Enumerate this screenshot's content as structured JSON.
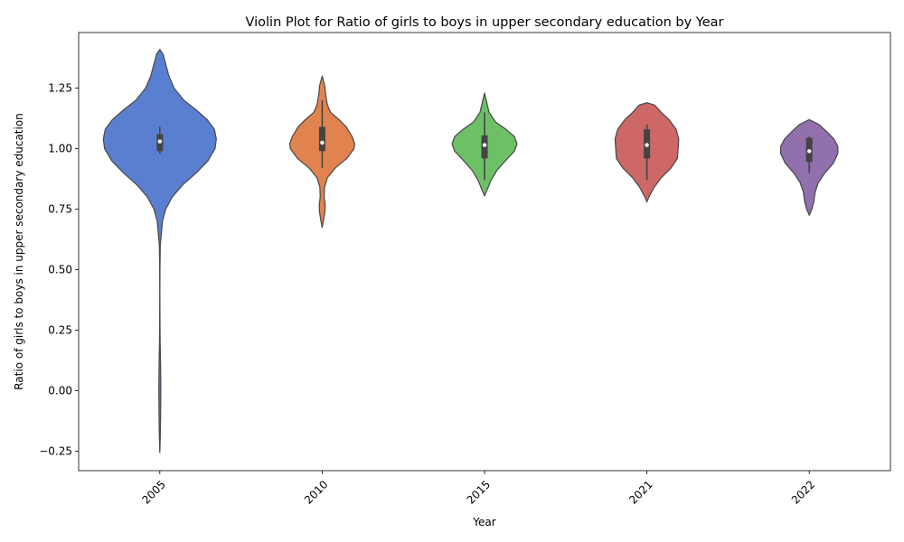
{
  "chart_data": {
    "type": "violin",
    "title": "Violin Plot for Ratio of girls to boys in upper secondary education by Year",
    "xlabel": "Year",
    "ylabel": "Ratio of girls to boys in upper secondary education",
    "ylim": [
      -0.33,
      1.48
    ],
    "yticks": [
      -0.25,
      0.0,
      0.25,
      0.5,
      0.75,
      1.0,
      1.25
    ],
    "ytick_labels": [
      "−0.25",
      "0.00",
      "0.25",
      "0.50",
      "0.75",
      "1.00",
      "1.25"
    ],
    "grid": false,
    "legend": "none",
    "categories": [
      "2005",
      "2010",
      "2015",
      "2021",
      "2022"
    ],
    "series": [
      {
        "category": "2005",
        "color": "#4c72b0",
        "fill": "#5a7fd0",
        "box": {
          "whisker_low": 0.98,
          "q1": 0.99,
          "median": 1.03,
          "q3": 1.06,
          "whisker_high": 1.09
        },
        "density": [
          [
            -0.255,
            0.0
          ],
          [
            -0.2,
            0.006
          ],
          [
            -0.1,
            0.012
          ],
          [
            0.0,
            0.015
          ],
          [
            0.1,
            0.012
          ],
          [
            0.2,
            0.005
          ],
          [
            0.3,
            0.002
          ],
          [
            0.4,
            0.001
          ],
          [
            0.5,
            0.002
          ],
          [
            0.6,
            0.007
          ],
          [
            0.7,
            0.04
          ],
          [
            0.75,
            0.09
          ],
          [
            0.8,
            0.19
          ],
          [
            0.85,
            0.35
          ],
          [
            0.9,
            0.56
          ],
          [
            0.95,
            0.74
          ],
          [
            1.0,
            0.85
          ],
          [
            1.04,
            0.87
          ],
          [
            1.08,
            0.84
          ],
          [
            1.12,
            0.73
          ],
          [
            1.16,
            0.56
          ],
          [
            1.2,
            0.37
          ],
          [
            1.25,
            0.22
          ],
          [
            1.3,
            0.14
          ],
          [
            1.35,
            0.09
          ],
          [
            1.39,
            0.05
          ],
          [
            1.41,
            0.0
          ]
        ]
      },
      {
        "category": "2010",
        "color": "#dd8452",
        "fill": "#e1834f",
        "box": {
          "whisker_low": 0.92,
          "q1": 0.99,
          "median": 1.025,
          "q3": 1.09,
          "whisker_high": 1.2
        },
        "density": [
          [
            0.675,
            0.0
          ],
          [
            0.7,
            0.018
          ],
          [
            0.74,
            0.042
          ],
          [
            0.77,
            0.045
          ],
          [
            0.8,
            0.03
          ],
          [
            0.84,
            0.035
          ],
          [
            0.88,
            0.08
          ],
          [
            0.92,
            0.2
          ],
          [
            0.96,
            0.38
          ],
          [
            1.0,
            0.49
          ],
          [
            1.02,
            0.5
          ],
          [
            1.05,
            0.46
          ],
          [
            1.09,
            0.37
          ],
          [
            1.12,
            0.26
          ],
          [
            1.15,
            0.13
          ],
          [
            1.18,
            0.08
          ],
          [
            1.22,
            0.055
          ],
          [
            1.26,
            0.04
          ],
          [
            1.3,
            0.0
          ]
        ]
      },
      {
        "category": "2015",
        "color": "#55a868",
        "fill": "#6dc066",
        "box": {
          "whisker_low": 0.87,
          "q1": 0.96,
          "median": 1.015,
          "q3": 1.055,
          "whisker_high": 1.15
        },
        "density": [
          [
            0.805,
            0.0
          ],
          [
            0.83,
            0.04
          ],
          [
            0.87,
            0.1
          ],
          [
            0.91,
            0.19
          ],
          [
            0.95,
            0.32
          ],
          [
            0.99,
            0.46
          ],
          [
            1.02,
            0.5
          ],
          [
            1.05,
            0.46
          ],
          [
            1.08,
            0.33
          ],
          [
            1.11,
            0.17
          ],
          [
            1.15,
            0.07
          ],
          [
            1.19,
            0.035
          ],
          [
            1.23,
            0.0
          ]
        ]
      },
      {
        "category": "2021",
        "color": "#c44e52",
        "fill": "#cd6867",
        "box": {
          "whisker_low": 0.87,
          "q1": 0.96,
          "median": 1.015,
          "q3": 1.08,
          "whisker_high": 1.1
        },
        "density": [
          [
            0.78,
            0.0
          ],
          [
            0.8,
            0.03
          ],
          [
            0.84,
            0.11
          ],
          [
            0.88,
            0.22
          ],
          [
            0.92,
            0.37
          ],
          [
            0.96,
            0.47
          ],
          [
            1.0,
            0.48
          ],
          [
            1.04,
            0.49
          ],
          [
            1.08,
            0.45
          ],
          [
            1.12,
            0.34
          ],
          [
            1.15,
            0.22
          ],
          [
            1.18,
            0.12
          ],
          [
            1.19,
            0.0
          ]
        ]
      },
      {
        "category": "2022",
        "color": "#8172b3",
        "fill": "#9170ad",
        "box": {
          "whisker_low": 0.9,
          "q1": 0.945,
          "median": 0.99,
          "q3": 1.045,
          "whisker_high": 1.05
        },
        "density": [
          [
            0.725,
            0.0
          ],
          [
            0.75,
            0.04
          ],
          [
            0.78,
            0.07
          ],
          [
            0.82,
            0.09
          ],
          [
            0.86,
            0.14
          ],
          [
            0.9,
            0.24
          ],
          [
            0.94,
            0.37
          ],
          [
            0.98,
            0.44
          ],
          [
            1.01,
            0.44
          ],
          [
            1.04,
            0.38
          ],
          [
            1.07,
            0.27
          ],
          [
            1.1,
            0.15
          ],
          [
            1.12,
            0.0
          ]
        ]
      }
    ]
  }
}
